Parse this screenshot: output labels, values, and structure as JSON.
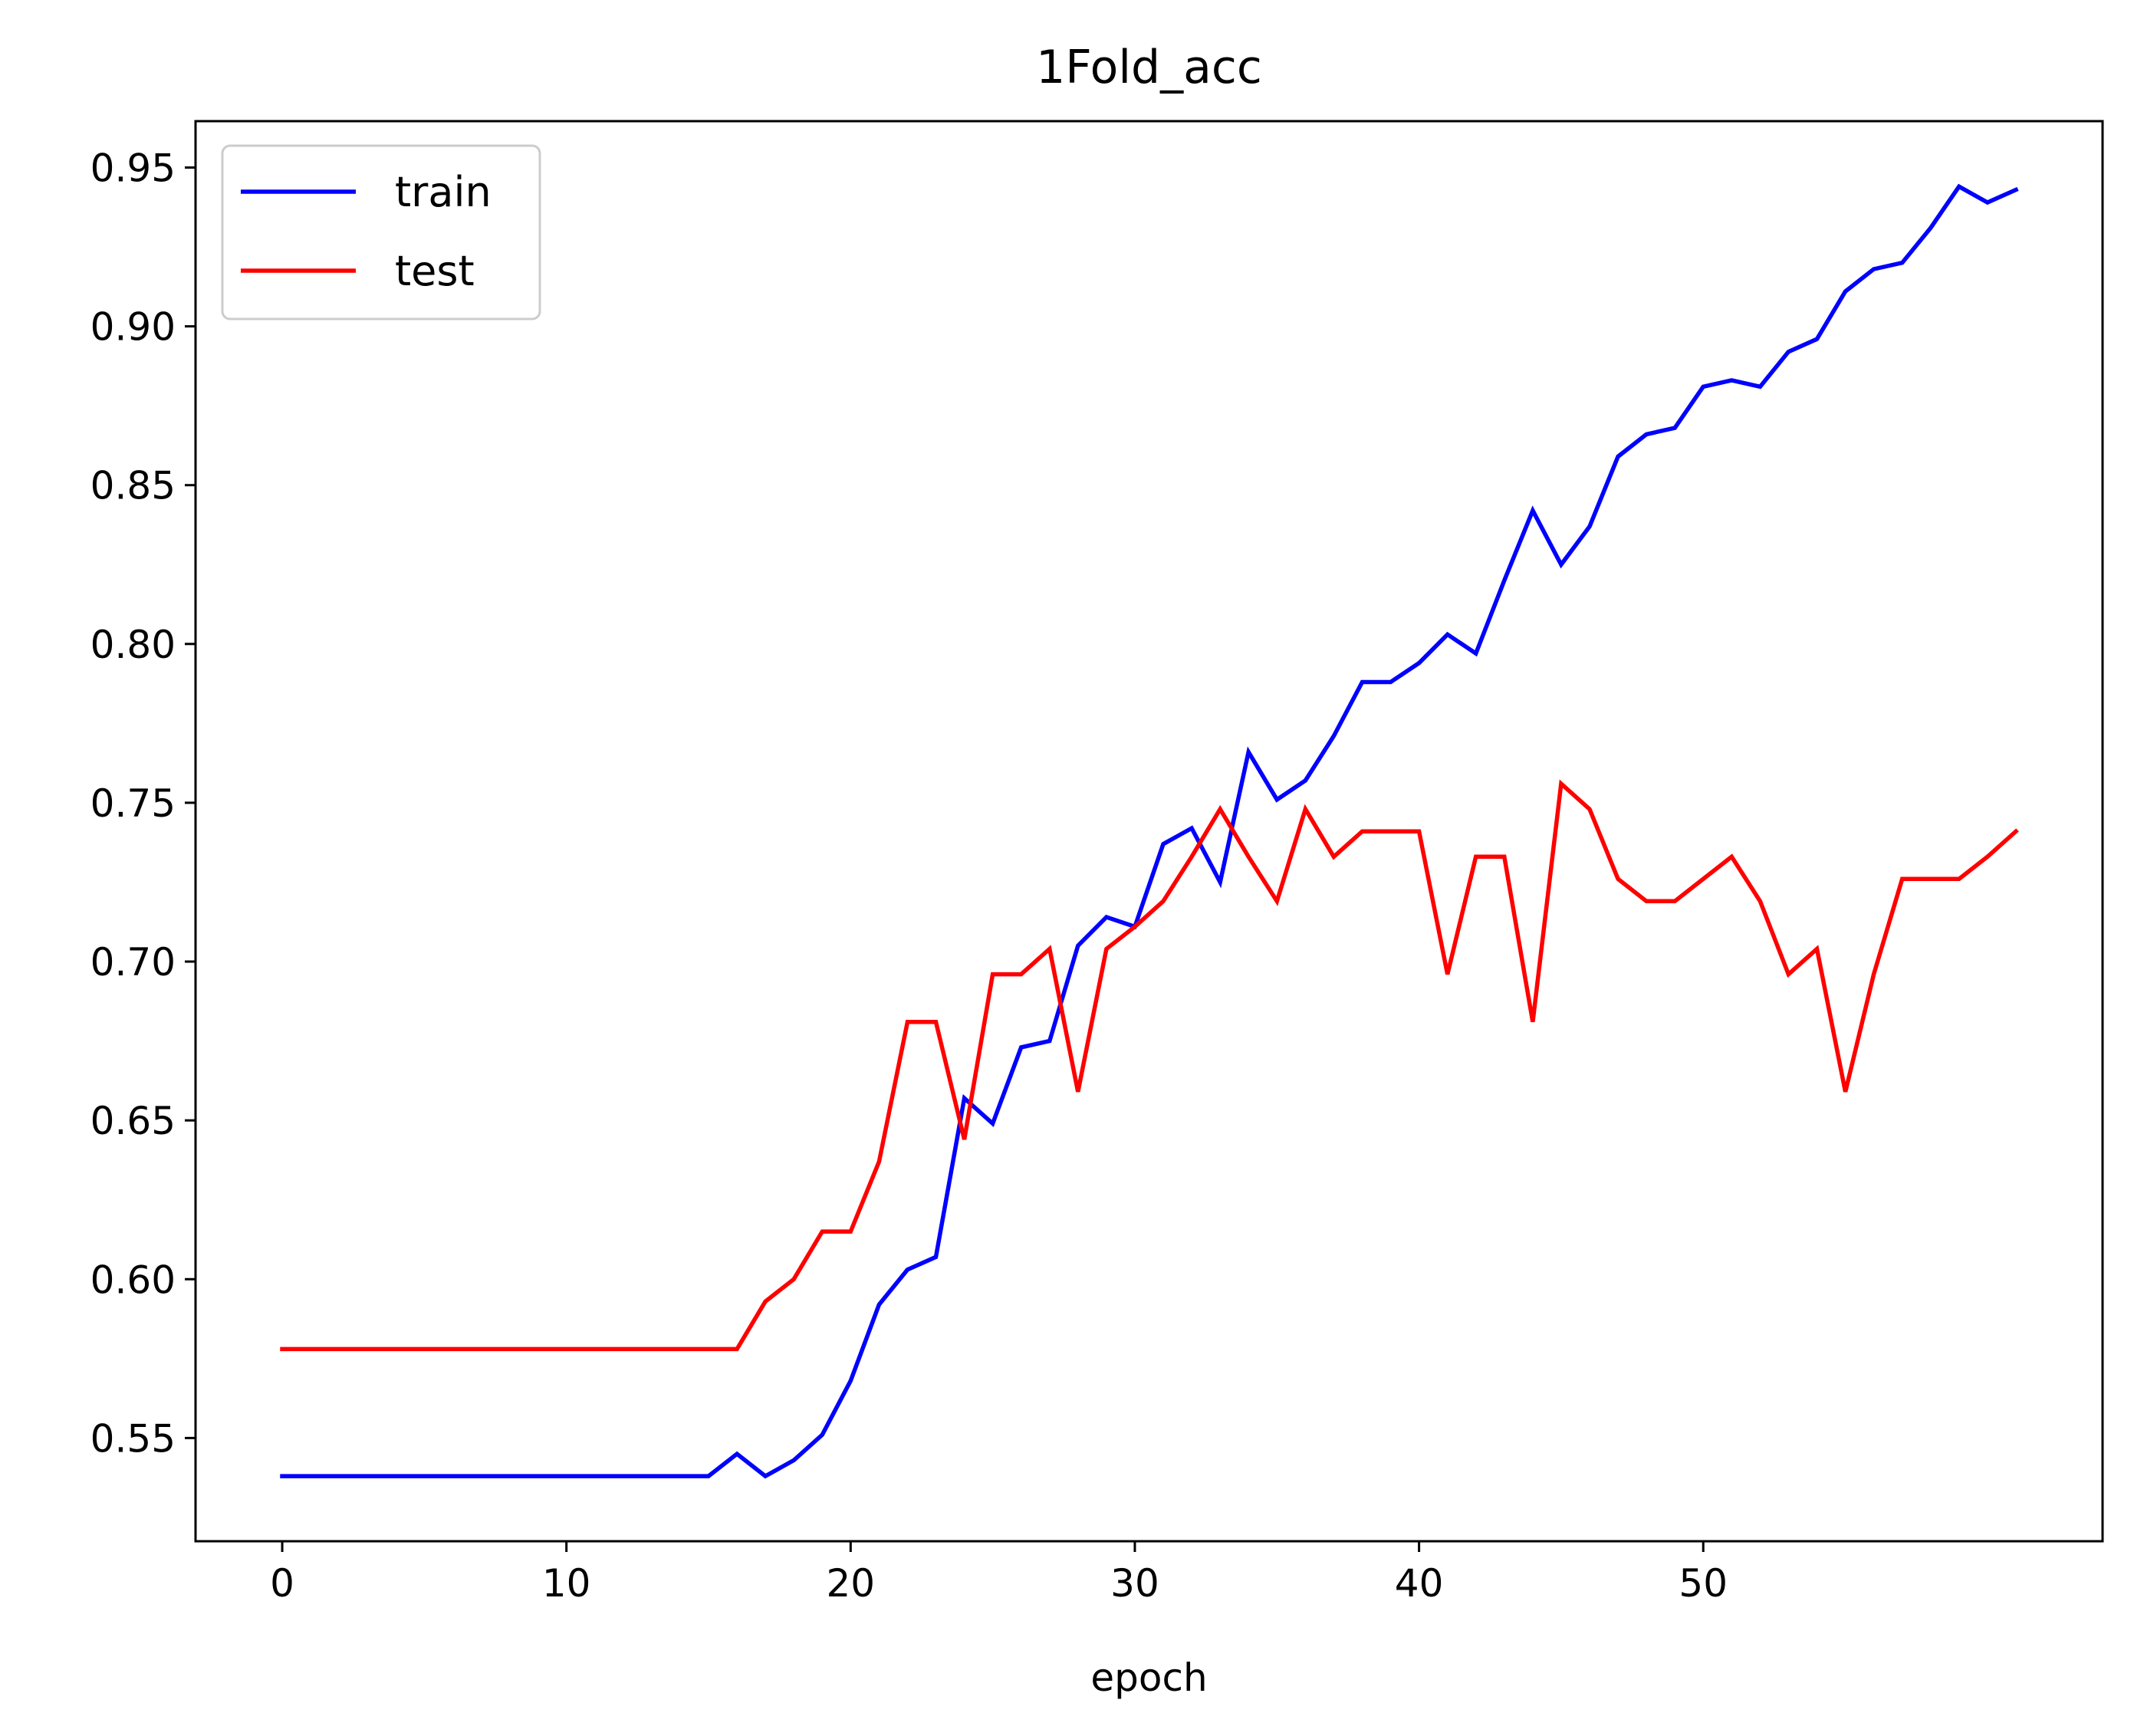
{
  "chart_data": {
    "type": "line",
    "title": "1Fold_acc",
    "xlabel": "epoch",
    "ylabel": "",
    "xlim": [
      -3.05,
      64.05
    ],
    "ylim": [
      0.5175,
      0.9646
    ],
    "xticks": [
      0,
      10,
      20,
      30,
      40,
      50
    ],
    "xtick_labels": [
      "0",
      "10",
      "20",
      "30",
      "40",
      "50"
    ],
    "yticks": [
      0.55,
      0.6,
      0.65,
      0.7,
      0.75,
      0.8,
      0.85,
      0.9,
      0.95
    ],
    "ytick_labels": [
      "0.55",
      "0.60",
      "0.65",
      "0.70",
      "0.75",
      "0.80",
      "0.85",
      "0.90",
      "0.95"
    ],
    "grid": false,
    "legend_position": "top-left",
    "x": [
      0,
      1,
      2,
      3,
      4,
      5,
      6,
      7,
      8,
      9,
      10,
      11,
      12,
      13,
      14,
      15,
      16,
      17,
      18,
      19,
      20,
      21,
      22,
      23,
      24,
      25,
      26,
      27,
      28,
      29,
      30,
      31,
      32,
      33,
      34,
      35,
      36,
      37,
      38,
      39,
      40,
      41,
      42,
      43,
      44,
      45,
      46,
      47,
      48,
      49,
      50,
      51,
      52,
      53,
      54,
      55,
      56,
      57,
      58,
      59,
      60,
      61
    ],
    "series": [
      {
        "name": "train",
        "color": "#0000ff",
        "values": [
          0.538,
          0.538,
          0.538,
          0.538,
          0.538,
          0.538,
          0.538,
          0.538,
          0.538,
          0.538,
          0.538,
          0.538,
          0.538,
          0.538,
          0.538,
          0.538,
          0.545,
          0.538,
          0.543,
          0.551,
          0.568,
          0.592,
          0.603,
          0.607,
          0.657,
          0.649,
          0.673,
          0.675,
          0.705,
          0.714,
          0.711,
          0.737,
          0.742,
          0.725,
          0.766,
          0.751,
          0.757,
          0.771,
          0.788,
          0.788,
          0.794,
          0.803,
          0.797,
          0.82,
          0.842,
          0.825,
          0.837,
          0.859,
          0.866,
          0.868,
          0.881,
          0.883,
          0.881,
          0.892,
          0.896,
          0.911,
          0.918,
          0.92,
          0.931,
          0.944,
          0.939,
          0.943
        ]
      },
      {
        "name": "test",
        "color": "#ff0000",
        "values": [
          0.578,
          0.578,
          0.578,
          0.578,
          0.578,
          0.578,
          0.578,
          0.578,
          0.578,
          0.578,
          0.578,
          0.578,
          0.578,
          0.578,
          0.578,
          0.578,
          0.578,
          0.593,
          0.6,
          0.615,
          0.615,
          0.637,
          0.681,
          0.681,
          0.644,
          0.696,
          0.696,
          0.704,
          0.659,
          0.704,
          0.711,
          0.719,
          0.733,
          0.748,
          0.733,
          0.719,
          0.748,
          0.733,
          0.741,
          0.741,
          0.741,
          0.696,
          0.733,
          0.733,
          0.681,
          0.756,
          0.748,
          0.726,
          0.719,
          0.719,
          0.726,
          0.733,
          0.719,
          0.696,
          0.704,
          0.659,
          0.696,
          0.726,
          0.726,
          0.726,
          0.733,
          0.741
        ]
      }
    ]
  }
}
